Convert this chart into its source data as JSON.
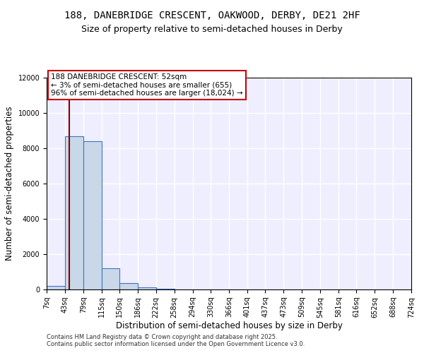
{
  "title1": "188, DANEBRIDGE CRESCENT, OAKWOOD, DERBY, DE21 2HF",
  "title2": "Size of property relative to semi-detached houses in Derby",
  "xlabel": "Distribution of semi-detached houses by size in Derby",
  "ylabel": "Number of semi-detached properties",
  "bar_edges": [
    7,
    43,
    79,
    115,
    150,
    186,
    222,
    258,
    294,
    330,
    366,
    401,
    437,
    473,
    509,
    545,
    581,
    616,
    652,
    688,
    724
  ],
  "bar_heights": [
    200,
    8700,
    8400,
    1200,
    350,
    130,
    50,
    0,
    0,
    0,
    0,
    0,
    0,
    0,
    0,
    0,
    0,
    0,
    0,
    0
  ],
  "bar_color": "#c8d8e8",
  "bar_edge_color": "#4472c4",
  "property_size": 52,
  "red_line_color": "#8b0000",
  "annotation_text": "188 DANEBRIDGE CRESCENT: 52sqm\n← 3% of semi-detached houses are smaller (655)\n96% of semi-detached houses are larger (18,024) →",
  "annotation_box_color": "#ffffff",
  "annotation_border_color": "#cc0000",
  "ylim": [
    0,
    12000
  ],
  "background_color": "#eeeeff",
  "grid_color": "#ffffff",
  "footer_text": "Contains HM Land Registry data © Crown copyright and database right 2025.\nContains public sector information licensed under the Open Government Licence v3.0.",
  "title_fontsize": 10,
  "subtitle_fontsize": 9,
  "axis_label_fontsize": 8.5,
  "tick_fontsize": 7,
  "annotation_fontsize": 7.5,
  "tick_labels": [
    "7sq",
    "43sq",
    "79sq",
    "115sq",
    "150sq",
    "186sq",
    "222sq",
    "258sq",
    "294sq",
    "330sq",
    "366sq",
    "401sq",
    "437sq",
    "473sq",
    "509sq",
    "545sq",
    "581sq",
    "616sq",
    "652sq",
    "688sq",
    "724sq"
  ]
}
